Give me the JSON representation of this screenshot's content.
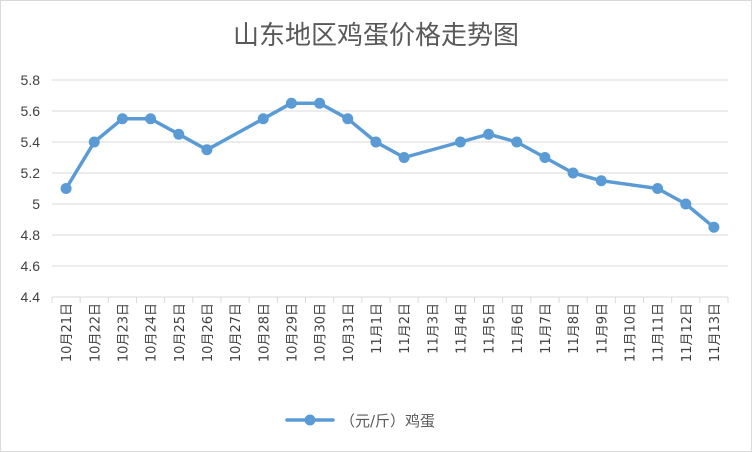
{
  "chart_data": {
    "type": "line",
    "title": "山东地区鸡蛋价格走势图",
    "categories": [
      "10月21日",
      "10月22日",
      "10月23日",
      "10月24日",
      "10月25日",
      "10月26日",
      "10月27日",
      "10月28日",
      "10月29日",
      "10月30日",
      "10月31日",
      "11月1日",
      "11月2日",
      "11月3日",
      "11月4日",
      "11月5日",
      "11月6日",
      "11月7日",
      "11月8日",
      "11月9日",
      "11月10日",
      "11月11日",
      "11月12日",
      "11月13日"
    ],
    "series": [
      {
        "name": "（元/斤）鸡蛋",
        "values": [
          5.1,
          5.4,
          5.55,
          5.55,
          5.45,
          5.35,
          null,
          5.55,
          5.65,
          5.65,
          5.55,
          5.4,
          5.3,
          null,
          5.4,
          5.45,
          5.4,
          5.3,
          5.2,
          5.15,
          null,
          5.1,
          5.0,
          4.85
        ]
      }
    ],
    "yticks": [
      "4.4",
      "4.6",
      "4.8",
      "5",
      "5.2",
      "5.4",
      "5.6",
      "5.8"
    ],
    "ylim": [
      4.4,
      5.8
    ],
    "grid": true,
    "legend": "bottom",
    "colors": {
      "series": "#5b9bd5"
    }
  }
}
